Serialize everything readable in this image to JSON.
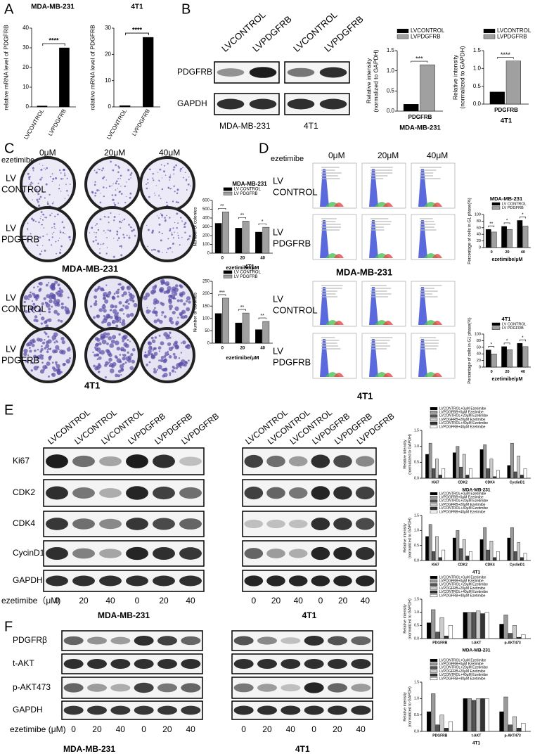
{
  "panel_labels": [
    "A",
    "B",
    "C",
    "D",
    "E",
    "F"
  ],
  "blot_b": {
    "row_labels": [
      "PDGFRB",
      "GAPDH"
    ],
    "lane_labels": [
      "LVCONTROL",
      "LVPDGFRB"
    ],
    "cell_lines": [
      "MDA-MB-231",
      "4T1"
    ]
  },
  "colony": {
    "treatment": "ezetimibe",
    "doses": [
      "0μM",
      "20μM",
      "40μM"
    ],
    "rows": [
      [
        "LV",
        "CONTROL"
      ],
      [
        "LV",
        "PDGFRB"
      ]
    ],
    "cell_lines": [
      "MDA-MB-231",
      "4T1"
    ]
  },
  "flow": {
    "treatment": "ezetimibe",
    "doses": [
      "0μM",
      "20μM",
      "40μM"
    ],
    "rows": [
      [
        "LV",
        "CONTROL"
      ],
      [
        "LV",
        "PDGFRB"
      ]
    ],
    "cell_lines": [
      "MDA-MB-231",
      "4T1"
    ]
  },
  "blot_e": {
    "lane_labels": [
      "LVCONTROL",
      "LVCONTROL",
      "LVCONTROL",
      "LVPDGFRB",
      "LVPDGFRB",
      "LVPDGFRB"
    ],
    "rows": [
      "Ki67",
      "CDK2",
      "CDK4",
      "CycinD1",
      "GAPDH"
    ],
    "treatment": "ezetimibe（μM)",
    "doses": [
      "0",
      "20",
      "40",
      "0",
      "20",
      "40"
    ],
    "cell_lines": [
      "MDA-MB-231",
      "4T1"
    ]
  },
  "blot_f": {
    "rows": [
      "PDGFRβ",
      "t-AKT",
      "p-AKT473",
      "GAPDH"
    ],
    "treatment": "ezetimibe  (μM)",
    "doses": [
      "0",
      "20",
      "40",
      "0",
      "20",
      "40"
    ],
    "cell_lines": [
      "MDA-MB-231",
      "4T1"
    ]
  },
  "chart_data": [
    {
      "type": "bar",
      "title": "MDA-MB-231",
      "ylabel": "relative mRNA level of PDGFRB",
      "categories": [
        "LVCONTROL",
        "LVPDGFRB"
      ],
      "values": [
        0.5,
        30
      ],
      "color": "#000000",
      "ylim": [
        0,
        40
      ],
      "yticks": [
        0,
        10,
        20,
        30,
        40
      ],
      "annotations": [
        "****"
      ]
    },
    {
      "type": "bar",
      "title": "4T1",
      "ylabel": "relative mRNA level of PDGFRB",
      "categories": [
        "LVCONTROL",
        "LVPDGFRB"
      ],
      "values": [
        0.5,
        26.5
      ],
      "color": "#000000",
      "ylim": [
        0,
        30
      ],
      "yticks": [
        0,
        10,
        20,
        30
      ],
      "annotations": [
        "****"
      ]
    },
    {
      "type": "bar",
      "xlabel": "MDA-MB-231",
      "ylabel": [
        "Relative intensity",
        "(normalized to GAPDH)"
      ],
      "categories": [
        "PDGFRB"
      ],
      "series": [
        {
          "name": "LVCONTROL",
          "color": "#000000",
          "values": [
            0.17
          ]
        },
        {
          "name": "LVPDGFRB",
          "color": "#a0a0a0",
          "values": [
            1.15
          ]
        }
      ],
      "ylim": [
        0,
        1.5
      ],
      "yticks": [
        {
          "value": 0,
          "label": "0.0"
        },
        {
          "value": 0.5,
          "label": "0.5"
        },
        {
          "value": 1,
          "label": "1.0"
        },
        {
          "value": 1.5,
          "label": "1.5"
        }
      ],
      "annotations": [
        "***"
      ]
    },
    {
      "type": "bar",
      "xlabel": "4T1",
      "ylabel": [
        "Relative intensity",
        "(normalized to GAPDH)"
      ],
      "categories": [
        "PDGFRB"
      ],
      "series": [
        {
          "name": "LVCONTROL",
          "color": "#000000",
          "values": [
            0.34
          ]
        },
        {
          "name": "LVPDGFRB",
          "color": "#a0a0a0",
          "values": [
            1.21
          ]
        }
      ],
      "ylim": [
        0,
        1.5
      ],
      "yticks": [
        {
          "value": 0,
          "label": "0.0"
        },
        {
          "value": 0.5,
          "label": "0.5"
        },
        {
          "value": 1,
          "label": "1.0"
        },
        {
          "value": 1.5,
          "label": "1.5"
        }
      ],
      "annotations": [
        "****"
      ]
    },
    {
      "type": "bar",
      "title": "MDA-MB-231",
      "xlabel": "ezetimibe/μM",
      "ylabel": "Number of colonies",
      "categories": [
        "0",
        "20",
        "40"
      ],
      "series": [
        {
          "name": "LV CONTROL",
          "color": "#000000",
          "values": [
            340,
            285,
            240
          ]
        },
        {
          "name": "LV PDGFRB",
          "color": "#a0a0a0",
          "values": [
            470,
            365,
            295
          ]
        }
      ],
      "ylim": [
        0,
        600
      ],
      "yticks": [
        0,
        100,
        200,
        300,
        400,
        500,
        600
      ],
      "annotations": [
        "**",
        "**",
        "*"
      ]
    },
    {
      "type": "bar",
      "title": "4T1",
      "xlabel": "ezetimibe/μM",
      "ylabel": "Number of colonies",
      "categories": [
        "0",
        "20",
        "40"
      ],
      "series": [
        {
          "name": "LV CONTROL",
          "color": "#000000",
          "values": [
            120,
            82,
            55
          ]
        },
        {
          "name": "LV PDGFRB",
          "color": "#a0a0a0",
          "values": [
            182,
            122,
            88
          ]
        }
      ],
      "ylim": [
        0,
        250
      ],
      "yticks": [
        0,
        50,
        100,
        150,
        200,
        250
      ],
      "annotations": [
        "***",
        "**",
        "**"
      ]
    },
    {
      "type": "bar",
      "title": "MDA-MB-231",
      "xlabel": "ezetimibe/μM",
      "ylabel": "Percentage of cells in G1 phase(%)",
      "categories": [
        "0",
        "20",
        "40"
      ],
      "series": [
        {
          "name": "LV CONTROL",
          "color": "#000000",
          "values": [
            55,
            64,
            82
          ]
        },
        {
          "name": "LV PDGFRB",
          "color": "#a0a0a0",
          "values": [
            47,
            55,
            65
          ]
        }
      ],
      "ylim": [
        0,
        100
      ],
      "yticks": [
        0,
        20,
        40,
        60,
        80,
        100
      ],
      "annotations": [
        "**",
        "*",
        "*"
      ]
    },
    {
      "type": "bar",
      "title": "4T1",
      "xlabel": "ezetimibe/μM",
      "ylabel": "Percentage of cells in G1 phase(%)",
      "categories": [
        "0",
        "20",
        "40"
      ],
      "series": [
        {
          "name": "LV CONTROL",
          "color": "#000000",
          "values": [
            52,
            62,
            72
          ]
        },
        {
          "name": "LV PDGFRB",
          "color": "#a0a0a0",
          "values": [
            40,
            53,
            62
          ]
        }
      ],
      "ylim": [
        0,
        100
      ],
      "yticks": [
        0,
        20,
        40,
        60,
        80,
        100
      ],
      "annotations": [
        "*",
        "*",
        "*"
      ]
    },
    {
      "type": "bar",
      "xlabel": "MDA-MB-231",
      "ylabel": [
        "Relative intensity",
        "(normalized to GAPDH)"
      ],
      "categories": [
        "Ki67",
        "CDK2",
        "CDK4",
        "CyclinD1"
      ],
      "series": [
        {
          "name": "LVCONTROL+0μM Ezetimibe",
          "color": "#000000",
          "values": [
            0.75,
            0.8,
            0.9,
            0.4
          ]
        },
        {
          "name": "LVPDGFRB+0μM Ezetimibe",
          "color": "#999999",
          "values": [
            1.1,
            1.0,
            1.05,
            1.1
          ]
        },
        {
          "name": "LVCONTROL+20μM Ezetimibe",
          "color": "#555555",
          "values": [
            0.3,
            0.35,
            0.3,
            0.2
          ]
        },
        {
          "name": "LVPDGFRB+20μM Ezetimibe",
          "color": "#cccccc",
          "values": [
            0.6,
            0.75,
            0.6,
            0.7
          ]
        },
        {
          "name": "LVCONTROL+40μM Ezetimibe",
          "color": "#333333",
          "values": [
            0.1,
            0.1,
            0.05,
            0.1
          ]
        },
        {
          "name": "LVPDGFRB+40μM Ezetimibe",
          "color": "#ffffff",
          "values": [
            0.3,
            0.3,
            0.25,
            0.3
          ]
        }
      ],
      "ylim": [
        0,
        1.5
      ],
      "yticks": [
        {
          "value": 0,
          "label": "0.0"
        },
        {
          "value": 0.5,
          "label": "0.5"
        },
        {
          "value": 1,
          "label": "1.0"
        },
        {
          "value": 1.5,
          "label": "1.5"
        }
      ]
    },
    {
      "type": "bar",
      "xlabel": "4T1",
      "ylabel": [
        "Relative intensity",
        "(normalized to GAPDH)"
      ],
      "categories": [
        "Ki67",
        "CDK2",
        "CDK4",
        "CyclinD1"
      ],
      "series": [
        {
          "name": "LVCONTROL+0μM Ezetimibe",
          "color": "#000000",
          "values": [
            0.8,
            0.75,
            0.7,
            0.75
          ]
        },
        {
          "name": "LVPDGFRB+0μM Ezetimibe",
          "color": "#999999",
          "values": [
            1.2,
            1.0,
            1.1,
            1.1
          ]
        },
        {
          "name": "LVCONTROL+20μM Ezetimibe",
          "color": "#555555",
          "values": [
            0.3,
            0.4,
            0.35,
            0.3
          ]
        },
        {
          "name": "LVPDGFRB+20μM Ezetimibe",
          "color": "#cccccc",
          "values": [
            0.8,
            0.7,
            0.65,
            0.6
          ]
        },
        {
          "name": "LVCONTROL+40μM Ezetimibe",
          "color": "#333333",
          "values": [
            0.1,
            0.15,
            0.1,
            0.1
          ]
        },
        {
          "name": "LVPDGFRB+40μM Ezetimibe",
          "color": "#ffffff",
          "values": [
            0.35,
            0.3,
            0.3,
            0.25
          ]
        }
      ],
      "ylim": [
        0,
        1.5
      ],
      "yticks": [
        {
          "value": 0,
          "label": "0.0"
        },
        {
          "value": 0.5,
          "label": "0.5"
        },
        {
          "value": 1,
          "label": "1.0"
        },
        {
          "value": 1.5,
          "label": "1.5"
        }
      ]
    },
    {
      "type": "bar",
      "xlabel": "MDA-MB-231",
      "ylabel": [
        "Relative intensity",
        "(normalized to GAPDH)"
      ],
      "categories": [
        "PDGFRB",
        "t-AKT",
        "p-AKT473"
      ],
      "series": [
        {
          "name": "LVCONTROL+0μM Ezetimibe",
          "color": "#000000",
          "values": [
            0.6,
            1.0,
            0.55
          ]
        },
        {
          "name": "LVPDGFRB+0μM Ezetimibe",
          "color": "#999999",
          "values": [
            1.1,
            1.0,
            0.9
          ]
        },
        {
          "name": "LVCONTROL+20μM Ezetimibe",
          "color": "#555555",
          "values": [
            0.25,
            1.0,
            0.2
          ]
        },
        {
          "name": "LVPDGFRB+20μM Ezetimibe",
          "color": "#cccccc",
          "values": [
            0.8,
            1.05,
            0.5
          ]
        },
        {
          "name": "LVCONTROL+40μM Ezetimibe",
          "color": "#333333",
          "values": [
            0.1,
            0.95,
            0.05
          ]
        },
        {
          "name": "LVPDGFRB+40μM Ezetimibe",
          "color": "#ffffff",
          "values": [
            0.5,
            1.0,
            0.15
          ]
        }
      ],
      "ylim": [
        0,
        1.5
      ],
      "yticks": [
        {
          "value": 0,
          "label": "0.0"
        },
        {
          "value": 0.5,
          "label": "0.5"
        },
        {
          "value": 1,
          "label": "1.0"
        },
        {
          "value": 1.5,
          "label": "1.5"
        }
      ]
    },
    {
      "type": "bar",
      "xlabel": "4T1",
      "ylabel": [
        "Relative intensity",
        "(normalized to GAPDH)"
      ],
      "categories": [
        "PDGFRB",
        "t-AKT",
        "p-AKT473"
      ],
      "series": [
        {
          "name": "LVCONTROL+0μM Ezetimibe",
          "color": "#000000",
          "values": [
            0.6,
            1.0,
            0.6
          ]
        },
        {
          "name": "LVPDGFRB+0μM Ezetimibe",
          "color": "#999999",
          "values": [
            1.15,
            1.0,
            1.05
          ]
        },
        {
          "name": "LVCONTROL+20μM Ezetimibe",
          "color": "#555555",
          "values": [
            0.2,
            0.95,
            0.2
          ]
        },
        {
          "name": "LVPDGFRB+20μM Ezetimibe",
          "color": "#cccccc",
          "values": [
            0.5,
            1.0,
            0.45
          ]
        },
        {
          "name": "LVCONTROL+40μM Ezetimibe",
          "color": "#333333",
          "values": [
            0.1,
            1.0,
            0.1
          ]
        },
        {
          "name": "LVPDGFRB+40μM Ezetimibe",
          "color": "#ffffff",
          "values": [
            0.3,
            1.0,
            0.25
          ]
        }
      ],
      "ylim": [
        0,
        1.5
      ],
      "yticks": [
        {
          "value": 0,
          "label": "0.0"
        },
        {
          "value": 0.5,
          "label": "0.5"
        },
        {
          "value": 1,
          "label": "1.0"
        },
        {
          "value": 1.5,
          "label": "1.5"
        }
      ]
    }
  ]
}
